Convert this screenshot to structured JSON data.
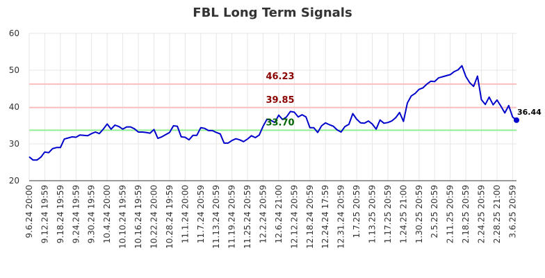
{
  "chart_data": {
    "type": "line",
    "title": "FBL Long Term Signals",
    "xlabel": "",
    "ylabel": "",
    "ylim": [
      20,
      60
    ],
    "yticks": [
      20,
      30,
      40,
      50,
      60
    ],
    "grid": true,
    "x_tick_labels": [
      "9.6.24 20:00",
      "9.12.24 19:59",
      "9.18.24 19:59",
      "9.24.24 19:59",
      "9.30.24 19:59",
      "10.4.24 20:00",
      "10.10.24 19:59",
      "10.16.24 19:59",
      "10.22.24 20:00",
      "10.28.24 19:59",
      "11.1.24 20:00",
      "11.7.24 20:59",
      "11.13.24 20:59",
      "11.19.24 20:59",
      "11.25.24 20:59",
      "12.2.24 20:59",
      "12.6.24 21:00",
      "12.12.24 20:59",
      "12.18.24 20:59",
      "12.24.24 17:59",
      "12.31.24 20:59",
      "1.7.25 20:59",
      "1.13.25 20:59",
      "1.17.25 20:59",
      "1.24.25 21:00",
      "1.30.25 20:59",
      "2.5.25 20:59",
      "2.11.25 20:59",
      "2.18.25 20:59",
      "2.24.25 20:59",
      "2.28.25 21:00",
      "3.6.25 20:59"
    ],
    "tick_every": 4,
    "series": [
      {
        "color": "#0000cc",
        "values": [
          26.5,
          25.6,
          25.6,
          26.4,
          27.8,
          27.6,
          28.7,
          29.0,
          29.0,
          31.3,
          31.6,
          31.9,
          31.8,
          32.4,
          32.3,
          32.2,
          32.8,
          33.2,
          32.8,
          34.0,
          35.4,
          34.0,
          35.1,
          34.7,
          34.0,
          34.6,
          34.6,
          34.1,
          33.2,
          33.2,
          33.1,
          32.9,
          33.9,
          31.5,
          31.9,
          32.5,
          33.1,
          34.9,
          34.8,
          31.9,
          31.8,
          31.1,
          32.3,
          32.3,
          34.4,
          34.2,
          33.6,
          33.6,
          33.1,
          32.7,
          30.2,
          30.2,
          30.9,
          31.4,
          31.1,
          30.6,
          31.3,
          32.2,
          31.7,
          32.4,
          34.8,
          36.7,
          36.4,
          35.8,
          37.8,
          36.6,
          37.3,
          38.8,
          38.6,
          37.3,
          37.9,
          37.3,
          34.4,
          34.4,
          33.1,
          34.9,
          35.7,
          35.2,
          34.8,
          33.8,
          33.2,
          34.7,
          35.3,
          38.2,
          36.7,
          35.7,
          35.6,
          36.2,
          35.4,
          34.0,
          36.5,
          35.6,
          35.8,
          36.2,
          37.1,
          38.5,
          36.1,
          41.1,
          43.0,
          43.7,
          44.8,
          45.2,
          46.2,
          47.0,
          46.9,
          47.9,
          48.2,
          48.5,
          48.8,
          49.6,
          50.1,
          51.2,
          48.3,
          46.6,
          45.6,
          48.4,
          42.0,
          40.7,
          42.7,
          40.6,
          41.9,
          40.2,
          38.4,
          40.4,
          37.3,
          36.44
        ]
      }
    ],
    "levels": [
      {
        "value": 46.23,
        "label": "46.23",
        "line_color": "#ffbfbf",
        "text_color": "#8b0000"
      },
      {
        "value": 39.85,
        "label": "39.85",
        "line_color": "#ffbfbf",
        "text_color": "#8b0000"
      },
      {
        "value": 33.7,
        "label": "33.70",
        "line_color": "#90ee90",
        "text_color": "#006400"
      }
    ],
    "last_value_label": "36.44"
  }
}
